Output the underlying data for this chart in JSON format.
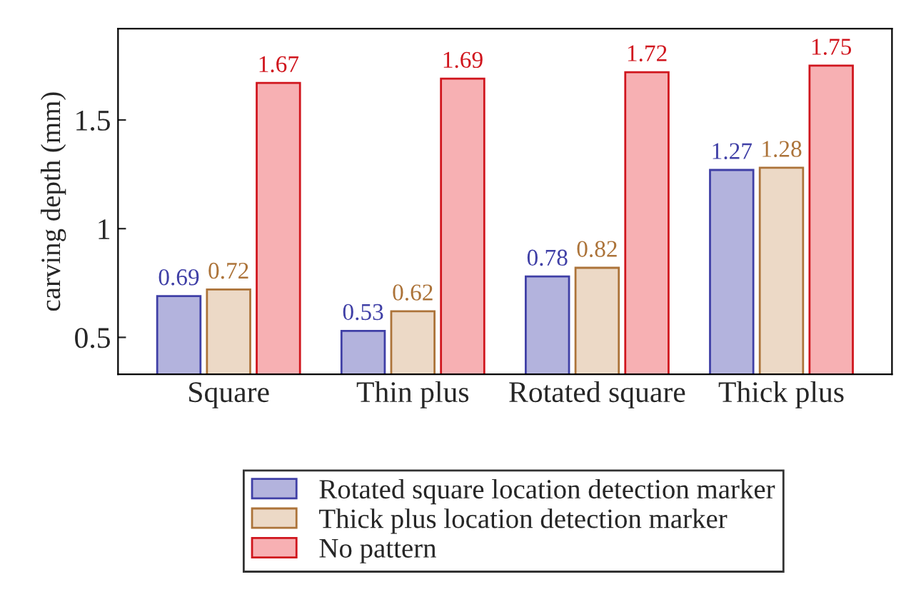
{
  "chart_data": {
    "type": "bar",
    "ylabel": "carving depth (mm)",
    "categories": [
      "Square",
      "Thin plus",
      "Rotated square",
      "Thick plus"
    ],
    "series": [
      {
        "name": "Rotated square location detection marker",
        "color": "#b3b3dd",
        "values": [
          0.69,
          0.53,
          0.78,
          1.27
        ]
      },
      {
        "name": "Thick plus location detection marker",
        "color": "#ecd9c6",
        "values": [
          0.72,
          0.62,
          0.82,
          1.28
        ]
      },
      {
        "name": "No pattern",
        "color": "#f7b0b3",
        "values": [
          1.67,
          1.69,
          1.72,
          1.75
        ]
      }
    ],
    "ylim": [
      0.33,
      1.92
    ],
    "yticks": [
      0.5,
      1,
      1.5
    ],
    "data_labels": true,
    "grid": false,
    "legend": "bottom"
  }
}
